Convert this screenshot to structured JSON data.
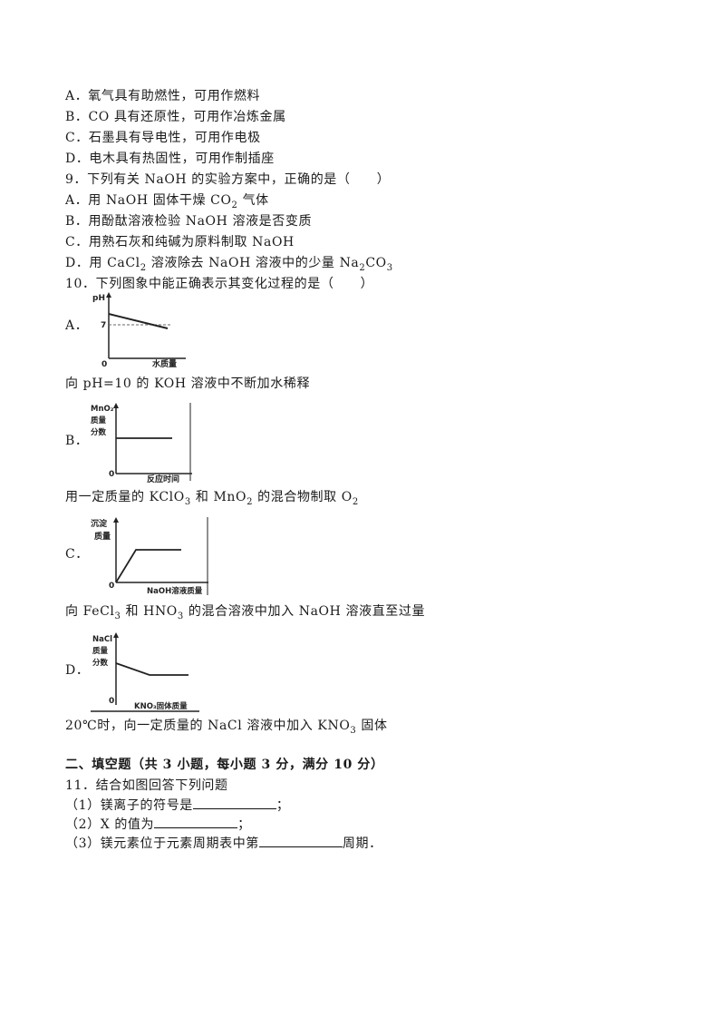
{
  "q8_options": [
    "A．氧气具有助燃性，可用作燃料",
    "B．CO 具有还原性，可用作冶炼金属",
    "C．石墨具有导电性，可用作电极",
    "D．电木具有热固性，可用作制插座"
  ],
  "q9": {
    "stem": "9．下列有关 NaOH 的实验方案中，正确的是（　　）",
    "options": [
      {
        "pre": "A．用 NaOH 固体干燥 CO",
        "sub": "2",
        "post": " 气体"
      },
      {
        "pre": "B．用酚酞溶液检验 NaOH 溶液是否变质",
        "sub": "",
        "post": ""
      },
      {
        "pre": "C．用熟石灰和纯碱为原料制取 NaOH",
        "sub": "",
        "post": ""
      },
      {
        "pre": "D．用 CaCl",
        "sub": "2",
        "post": " 溶液除去 NaOH 溶液中的少量 Na",
        "sub2": "2",
        "post2": "CO",
        "sub3": "3"
      }
    ]
  },
  "q10": {
    "stem": "10．下列图象中能正确表示其变化过程的是（　　）",
    "graphs": [
      {
        "letter": "A．",
        "ylabel": "pH",
        "tick": "7",
        "origin": "0",
        "xlabel": "水质量",
        "caption": "向 pH=10 的 KOH 溶液中不断加水稀释"
      },
      {
        "letter": "B．",
        "ylabel_lines": [
          "MnO₂",
          "质量",
          "分数"
        ],
        "origin": "0",
        "xlabel": "反应时间",
        "caption_parts": [
          "用一定质量的 KClO",
          "3",
          " 和 MnO",
          "2",
          " 的混合物制取 O",
          "2"
        ]
      },
      {
        "letter": "C．",
        "ylabel_lines": [
          "沉淀",
          "质量"
        ],
        "origin": "0",
        "xlabel": "NaOH溶液质量",
        "caption_parts": [
          "向 FeCl",
          "3",
          " 和 HNO",
          "3",
          " 的混合溶液中加入 NaOH 溶液直至过量"
        ]
      },
      {
        "letter": "D．",
        "ylabel_lines": [
          "NaCl",
          "质量",
          "分数"
        ],
        "origin": "0",
        "xlabel": "KNO₃固体质量",
        "caption_parts": [
          "20℃时，向一定质量的 NaCl 溶液中加入 KNO",
          "3",
          " 固体"
        ]
      }
    ]
  },
  "section2": {
    "title": "二、填空题（共 3 小题，每小题 3 分，满分 10 分）",
    "q11_stem": "11．结合如图回答下列问题",
    "items": [
      {
        "pre": "（1）镁离子的符号是",
        "post": "；"
      },
      {
        "pre": "（2）X 的值为",
        "post": "；"
      },
      {
        "pre": "（3）镁元素位于元素周期表中第",
        "post": "周期．"
      }
    ]
  }
}
